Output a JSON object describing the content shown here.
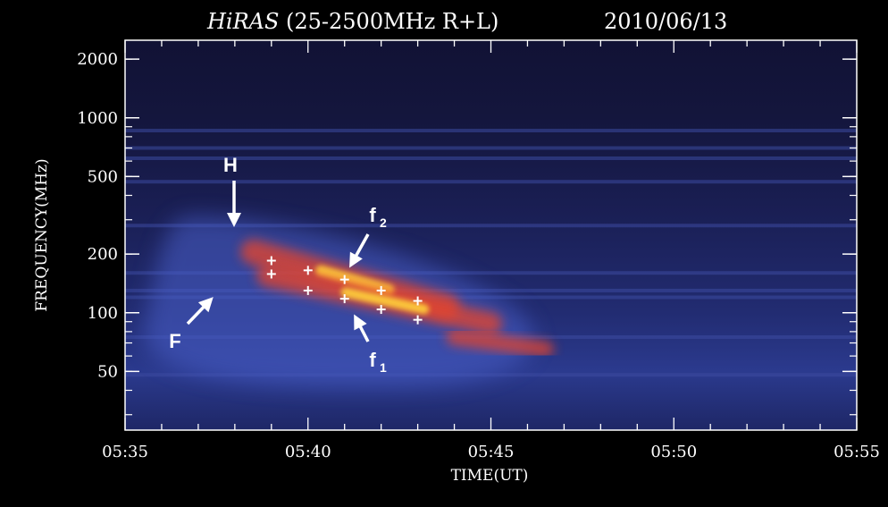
{
  "chart_data": {
    "type": "heatmap",
    "title": {
      "instrument": "HiRAS",
      "detail": "(25-2500MHz R+L)",
      "date": "2010/06/13"
    },
    "xlabel": "TIME(UT)",
    "ylabel": "FREQUENCY(MHz)",
    "x_ticks": [
      "05:35",
      "05:40",
      "05:45",
      "05:50",
      "05:55"
    ],
    "x_range_minutes": [
      0,
      20
    ],
    "y_scale": "log",
    "y_range": [
      25,
      2500
    ],
    "y_ticks": [
      50,
      100,
      200,
      500,
      1000,
      2000
    ],
    "annotations": [
      {
        "label": "H",
        "sub": "",
        "time_min": 3.0,
        "freq": 240
      },
      {
        "label": "F",
        "sub": "",
        "time_min": 1.7,
        "freq": 75
      },
      {
        "label": "f",
        "sub": "2",
        "time_min": 7.6,
        "freq": 300
      },
      {
        "label": "f",
        "sub": "1",
        "time_min": 7.6,
        "freq": 55
      }
    ],
    "markers_upper": [
      {
        "time_min": 4.0,
        "freq": 185
      },
      {
        "time_min": 5.0,
        "freq": 165
      },
      {
        "time_min": 6.0,
        "freq": 148
      },
      {
        "time_min": 7.0,
        "freq": 130
      },
      {
        "time_min": 8.0,
        "freq": 115
      }
    ],
    "markers_lower": [
      {
        "time_min": 4.0,
        "freq": 158
      },
      {
        "time_min": 5.0,
        "freq": 130
      },
      {
        "time_min": 6.0,
        "freq": 118
      },
      {
        "time_min": 7.0,
        "freq": 104
      },
      {
        "time_min": 8.0,
        "freq": 92
      }
    ],
    "emission_lanes": [
      {
        "name": "upper",
        "t0": 3.5,
        "f0": 205,
        "t1": 8.8,
        "f1": 108,
        "intensity": 1.0
      },
      {
        "name": "lower",
        "t0": 3.9,
        "f0": 155,
        "t1": 10.0,
        "f1": 88,
        "intensity": 0.85
      },
      {
        "name": "faint",
        "t0": 9.0,
        "f0": 75,
        "t1": 11.5,
        "f1": 65,
        "intensity": 0.5
      }
    ],
    "interference_bands_mhz": [
      860,
      700,
      620,
      470,
      280,
      160,
      130,
      120,
      75,
      48
    ],
    "colors": {
      "background": "#15163f",
      "bands": "#3c4aa0",
      "hot": "#ffd23a",
      "warm": "#e8452a",
      "diffuse": "#4a5ec9"
    }
  }
}
